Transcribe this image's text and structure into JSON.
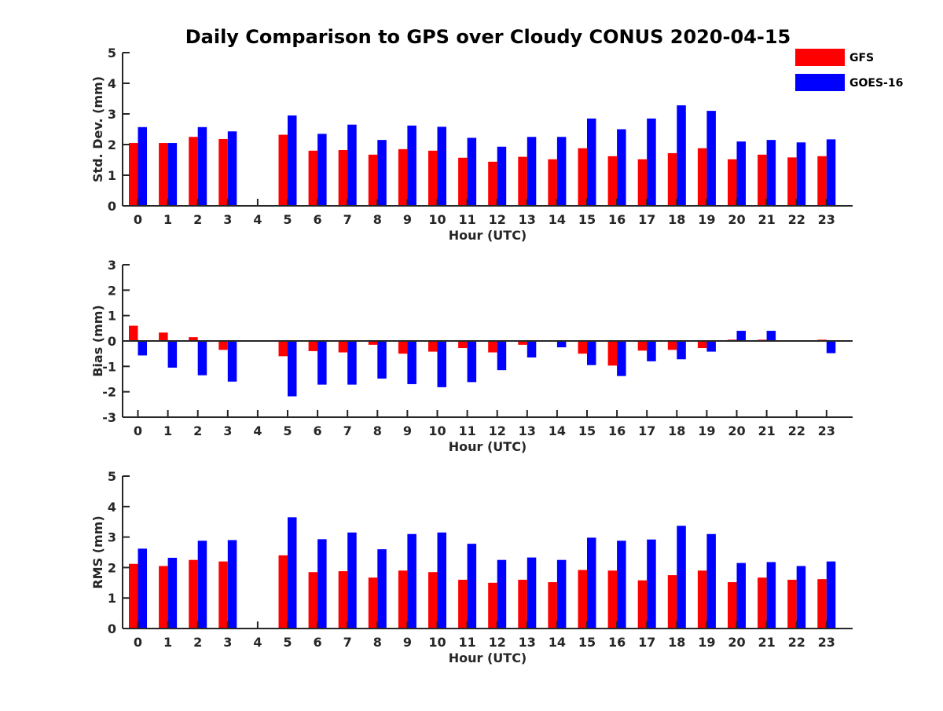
{
  "colors": {
    "GFS": "#ff0000",
    "GOES-16": "#0000ff",
    "axis": "#262626"
  },
  "chart_data": [
    {
      "type": "bar",
      "title": "Daily Comparison to GPS over Cloudy CONUS 2020-04-15",
      "xlabel": "Hour (UTC)",
      "ylabel": "Std. Dev. (mm)",
      "ylim": [
        0,
        5
      ],
      "yticks": [
        0,
        1,
        2,
        3,
        4,
        5
      ],
      "grid": false,
      "legend_position": "top-right",
      "categories": [
        "0",
        "1",
        "2",
        "3",
        "4",
        "5",
        "6",
        "7",
        "8",
        "9",
        "10",
        "11",
        "12",
        "13",
        "14",
        "15",
        "16",
        "17",
        "18",
        "19",
        "20",
        "21",
        "22",
        "23"
      ],
      "series": [
        {
          "name": "GFS",
          "values": [
            2.05,
            2.05,
            2.25,
            2.18,
            null,
            2.32,
            1.8,
            1.82,
            1.67,
            1.85,
            1.8,
            1.57,
            1.44,
            1.6,
            1.52,
            1.88,
            1.62,
            1.52,
            1.72,
            1.88,
            1.52,
            1.67,
            1.58,
            1.62
          ]
        },
        {
          "name": "GOES-16",
          "values": [
            2.57,
            2.05,
            2.57,
            2.43,
            null,
            2.95,
            2.35,
            2.65,
            2.15,
            2.62,
            2.58,
            2.22,
            1.93,
            2.25,
            2.25,
            2.85,
            2.5,
            2.85,
            3.28,
            3.1,
            2.1,
            2.15,
            2.07,
            2.17
          ]
        }
      ]
    },
    {
      "type": "bar",
      "xlabel": "Hour (UTC)",
      "ylabel": "Bias (mm)",
      "ylim": [
        -3,
        3
      ],
      "yticks": [
        -3,
        -2,
        -1,
        0,
        1,
        2,
        3
      ],
      "zero_line": true,
      "categories": [
        "0",
        "1",
        "2",
        "3",
        "4",
        "5",
        "6",
        "7",
        "8",
        "9",
        "10",
        "11",
        "12",
        "13",
        "14",
        "15",
        "16",
        "17",
        "18",
        "19",
        "20",
        "21",
        "22",
        "23"
      ],
      "series": [
        {
          "name": "GFS",
          "values": [
            0.6,
            0.33,
            0.15,
            -0.35,
            null,
            -0.6,
            -0.4,
            -0.45,
            -0.15,
            -0.5,
            -0.42,
            -0.28,
            -0.45,
            -0.15,
            0.0,
            -0.5,
            -0.97,
            -0.38,
            -0.35,
            -0.28,
            0.05,
            0.05,
            0.02,
            0.05
          ]
        },
        {
          "name": "GOES-16",
          "values": [
            -0.57,
            -1.05,
            -1.35,
            -1.6,
            null,
            -2.18,
            -1.72,
            -1.72,
            -1.48,
            -1.7,
            -1.82,
            -1.62,
            -1.15,
            -0.65,
            -0.25,
            -0.95,
            -1.38,
            -0.8,
            -0.72,
            -0.42,
            0.4,
            0.4,
            0.0,
            -0.48
          ]
        }
      ]
    },
    {
      "type": "bar",
      "xlabel": "Hour (UTC)",
      "ylabel": "RMS (mm)",
      "ylim": [
        0,
        5
      ],
      "yticks": [
        0,
        1,
        2,
        3,
        4,
        5
      ],
      "categories": [
        "0",
        "1",
        "2",
        "3",
        "4",
        "5",
        "6",
        "7",
        "8",
        "9",
        "10",
        "11",
        "12",
        "13",
        "14",
        "15",
        "16",
        "17",
        "18",
        "19",
        "20",
        "21",
        "22",
        "23"
      ],
      "series": [
        {
          "name": "GFS",
          "values": [
            2.12,
            2.05,
            2.25,
            2.2,
            null,
            2.4,
            1.85,
            1.88,
            1.67,
            1.9,
            1.85,
            1.6,
            1.5,
            1.6,
            1.52,
            1.92,
            1.9,
            1.58,
            1.75,
            1.9,
            1.52,
            1.67,
            1.6,
            1.62
          ]
        },
        {
          "name": "GOES-16",
          "values": [
            2.62,
            2.32,
            2.88,
            2.9,
            null,
            3.65,
            2.93,
            3.15,
            2.6,
            3.1,
            3.15,
            2.78,
            2.25,
            2.33,
            2.25,
            2.98,
            2.88,
            2.92,
            3.37,
            3.1,
            2.15,
            2.18,
            2.05,
            2.2
          ]
        }
      ]
    }
  ]
}
